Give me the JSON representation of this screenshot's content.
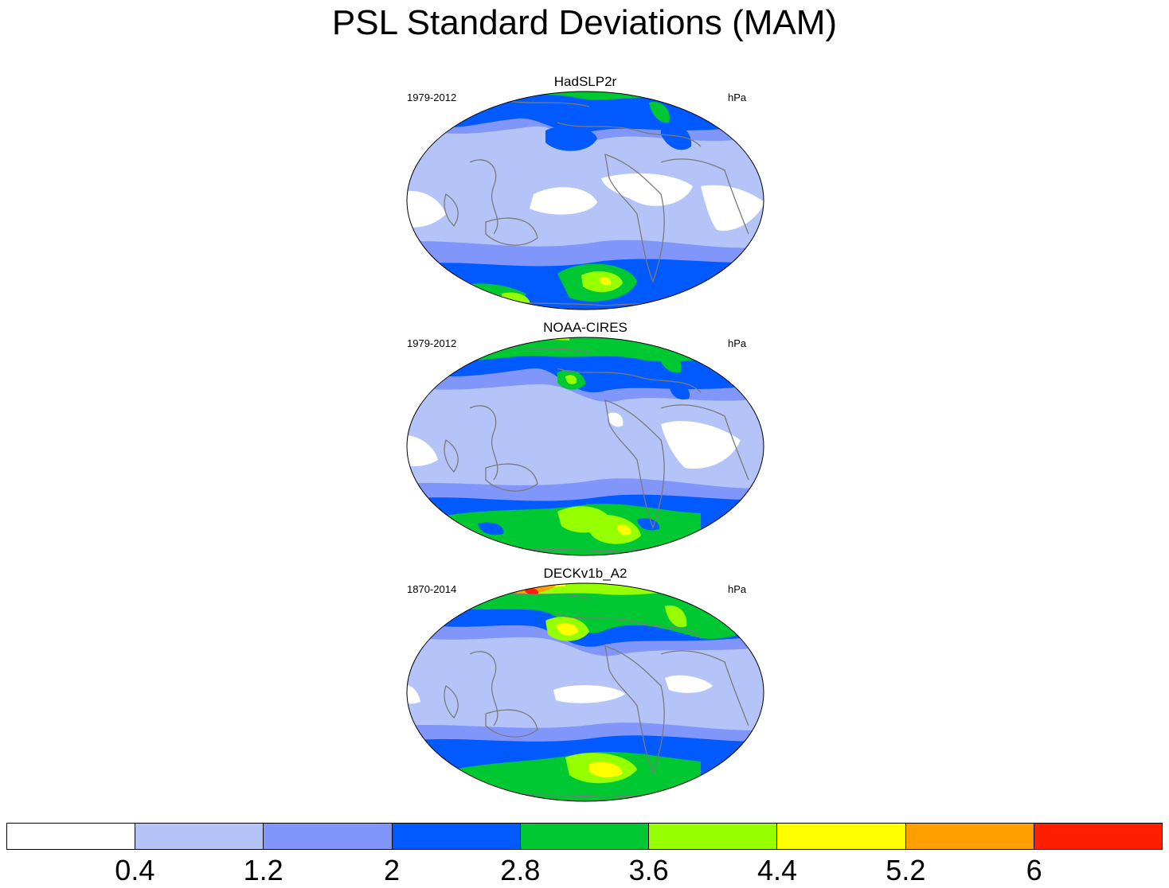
{
  "title": "PSL Standard Deviations (MAM)",
  "panels": [
    {
      "name": "HadSLP2r",
      "period": "1979-2012",
      "units": "hPa"
    },
    {
      "name": "NOAA-CIRES",
      "period": "1979-2012",
      "units": "hPa"
    },
    {
      "name": "DECKv1b_A2",
      "period": "1870-2014",
      "units": "hPa"
    }
  ],
  "colorbar": {
    "levels": [
      "0.4",
      "1.2",
      "2",
      "2.8",
      "3.6",
      "4.4",
      "5.2",
      "6"
    ],
    "colors": [
      "#ffffff",
      "#b4c4f8",
      "#8096fa",
      "#005aff",
      "#00c832",
      "#96ff00",
      "#ffff00",
      "#ffa000",
      "#ff1e00"
    ]
  },
  "colors": {
    "coastline": "#7a7a7a",
    "map_border": "#000000"
  }
}
